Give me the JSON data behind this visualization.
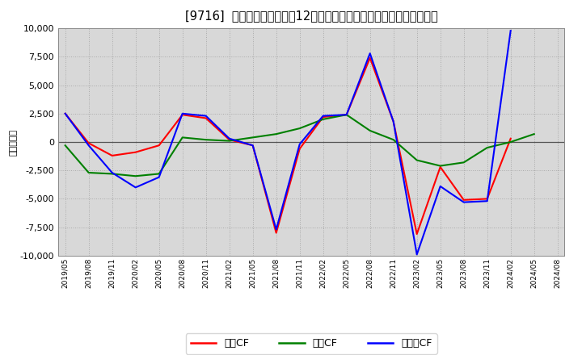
{
  "title": "[9716]  キャッシュフローの12か月移動合計の対前年同期増減額の推移",
  "ylabel": "（百万円）",
  "background_color": "#ffffff",
  "plot_bg_color": "#d8d8d8",
  "ylim": [
    -10000,
    10000
  ],
  "yticks": [
    -10000,
    -7500,
    -5000,
    -2500,
    0,
    2500,
    5000,
    7500,
    10000
  ],
  "x_labels": [
    "2019/05",
    "2019/08",
    "2019/11",
    "2020/02",
    "2020/05",
    "2020/08",
    "2020/11",
    "2021/02",
    "2021/05",
    "2021/08",
    "2021/11",
    "2022/02",
    "2022/05",
    "2022/08",
    "2022/11",
    "2023/02",
    "2023/05",
    "2023/08",
    "2023/11",
    "2024/02",
    "2024/05",
    "2024/08"
  ],
  "series_order": [
    "営業CF",
    "投資CF",
    "フリーCF"
  ],
  "series": {
    "営業CF": {
      "color": "#ff0000",
      "values": [
        2500,
        -100,
        -1200,
        -900,
        -300,
        2400,
        2100,
        200,
        -300,
        -8000,
        -600,
        2200,
        2400,
        7400,
        1800,
        -8100,
        -2200,
        -5100,
        -5000,
        300,
        null,
        null
      ]
    },
    "投資CF": {
      "color": "#008000",
      "values": [
        -300,
        -2700,
        -2800,
        -3000,
        -2800,
        400,
        200,
        100,
        400,
        700,
        1200,
        2000,
        2400,
        1000,
        200,
        -1600,
        -2100,
        -1800,
        -500,
        0,
        700,
        null
      ]
    },
    "フリーCF": {
      "color": "#0000ff",
      "values": [
        2500,
        -300,
        -2700,
        -4000,
        -3100,
        2500,
        2300,
        300,
        -300,
        -7700,
        -200,
        2300,
        2400,
        7800,
        1800,
        -9900,
        -3900,
        -5300,
        -5200,
        9800,
        null,
        null
      ]
    }
  },
  "legend_labels": [
    "営業CF",
    "投資CF",
    "フリーCF"
  ],
  "legend_colors": [
    "#ff0000",
    "#008000",
    "#0000ff"
  ]
}
